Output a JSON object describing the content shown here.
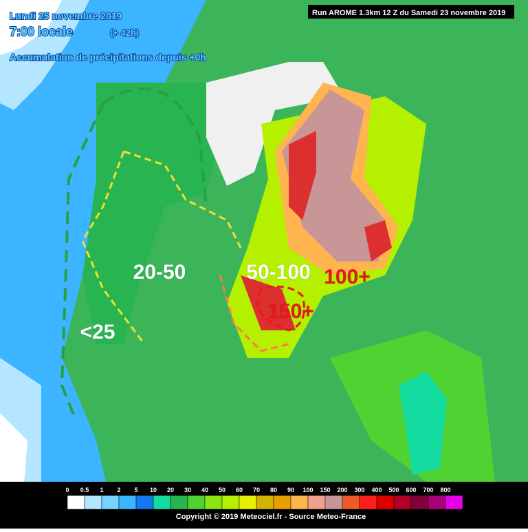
{
  "header": {
    "date": "Lundi 25 novembre 2019",
    "time": "7:00 locale",
    "lead": "(+ 42h)",
    "subtitle": "Accumulation de précipitations depuis +0h",
    "run": "Run AROME 1.3km 12 Z du Samedi 23 novembre 2019"
  },
  "annotations": [
    {
      "label": "20-50",
      "color": "#ffffff"
    },
    {
      "label": "50-100",
      "color": "#ffffff"
    },
    {
      "label": "100+",
      "color": "#e81818"
    },
    {
      "label": "150+",
      "color": "#e81818"
    },
    {
      "label": "<25",
      "color": "#ffffff"
    }
  ],
  "legend": {
    "items": [
      {
        "label": "0",
        "color": "#ffffff"
      },
      {
        "label": "0.5",
        "color": "#b4e6ff"
      },
      {
        "label": "1",
        "color": "#78d2ff"
      },
      {
        "label": "2",
        "color": "#3cb4ff"
      },
      {
        "label": "5",
        "color": "#1478f0"
      },
      {
        "label": "10",
        "color": "#14dca0"
      },
      {
        "label": "20",
        "color": "#28b450"
      },
      {
        "label": "30",
        "color": "#50d232"
      },
      {
        "label": "40",
        "color": "#8ce614"
      },
      {
        "label": "50",
        "color": "#b4f000"
      },
      {
        "label": "60",
        "color": "#e6f000"
      },
      {
        "label": "70",
        "color": "#d2b400"
      },
      {
        "label": "80",
        "color": "#e6a000"
      },
      {
        "label": "90",
        "color": "#ffb450"
      },
      {
        "label": "100",
        "color": "#f0a08c"
      },
      {
        "label": "150",
        "color": "#c89696"
      },
      {
        "label": "200",
        "color": "#f05a28"
      },
      {
        "label": "300",
        "color": "#ff1e1e"
      },
      {
        "label": "400",
        "color": "#dc0000"
      },
      {
        "label": "500",
        "color": "#b40028"
      },
      {
        "label": "600",
        "color": "#82003c"
      },
      {
        "label": "700",
        "color": "#aa0078"
      },
      {
        "label": "800",
        "color": "#e600e6"
      }
    ]
  },
  "footer": "Copyright © 2019 Meteociel.fr - Source Meteo-France"
}
